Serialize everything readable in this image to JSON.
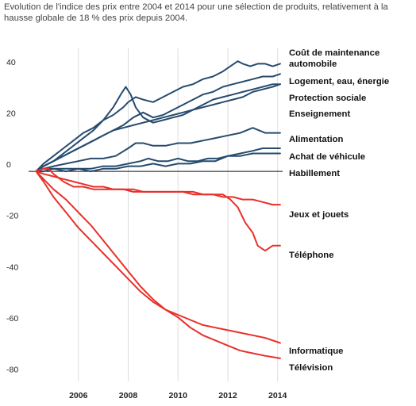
{
  "chart_data": {
    "type": "line",
    "title": "Evolution de l'indice des prix entre 2004 et 2014 pour une sélection de produits, relativement à la hausse globale de 18 % des prix depuis 2004.",
    "xlabel": "",
    "ylabel": "",
    "xlim": [
      2004.0,
      2014.2
    ],
    "ylim": [
      -82,
      48
    ],
    "x_ticks": [
      2006,
      2008,
      2010,
      2012,
      2014
    ],
    "x_tick_labels": [
      "2006",
      "2008",
      "2010",
      "2012",
      "2014"
    ],
    "y_ticks": [
      40,
      20,
      0,
      -20,
      -40,
      -60,
      -80
    ],
    "y_tick_labels": [
      "40",
      "20",
      "0",
      "-20",
      "-40",
      "-60",
      "-80"
    ],
    "grid": "vertical",
    "colors": {
      "up": "#274b6e",
      "down": "#e8302a",
      "zero_line": "#111111",
      "grid": "#dddddd"
    },
    "series": [
      {
        "name": "Coût de maintenance automobile",
        "color": "#274b6e",
        "label_lines": [
          "Coût de maintenance",
          "automobile"
        ],
        "x": [
          2004.3,
          2004.6,
          2005.0,
          2005.4,
          2005.8,
          2006.2,
          2006.6,
          2007.0,
          2007.4,
          2007.8,
          2008.0,
          2008.3,
          2008.6,
          2009.0,
          2009.4,
          2009.8,
          2010.2,
          2010.6,
          2011.0,
          2011.4,
          2011.8,
          2012.1,
          2012.4,
          2012.6,
          2012.9,
          2013.2,
          2013.5,
          2013.8,
          2014.1
        ],
        "y": [
          0,
          3,
          6,
          9,
          12,
          15,
          17,
          20,
          22,
          25,
          27,
          29,
          28,
          27,
          29,
          31,
          33,
          34,
          36,
          37,
          39,
          41,
          43,
          42,
          41,
          42,
          42,
          41,
          42
        ]
      },
      {
        "name": "Logement, eau, énergie",
        "color": "#274b6e",
        "x": [
          2004.3,
          2004.6,
          2005.0,
          2005.4,
          2005.8,
          2006.2,
          2006.6,
          2007.0,
          2007.4,
          2007.8,
          2008.2,
          2008.6,
          2009.0,
          2009.4,
          2009.8,
          2010.2,
          2010.6,
          2011.0,
          2011.4,
          2011.8,
          2012.2,
          2012.6,
          2013.0,
          2013.4,
          2013.8,
          2014.1
        ],
        "y": [
          0,
          2,
          4,
          6,
          8,
          10,
          12,
          14,
          16,
          18,
          21,
          23,
          21,
          22,
          24,
          26,
          28,
          30,
          31,
          33,
          34,
          35,
          36,
          37,
          37,
          38
        ]
      },
      {
        "name": "Protection sociale",
        "color": "#274b6e",
        "x": [
          2004.3,
          2004.6,
          2005.0,
          2005.4,
          2005.8,
          2006.2,
          2006.6,
          2007.0,
          2007.4,
          2007.7,
          2007.9,
          2008.1,
          2008.3,
          2008.6,
          2009.0,
          2009.4,
          2009.8,
          2010.2,
          2010.6,
          2011.0,
          2011.4,
          2011.8,
          2012.2,
          2012.6,
          2013.0,
          2013.4,
          2013.8,
          2014.1
        ],
        "y": [
          0,
          2,
          4,
          7,
          10,
          13,
          16,
          20,
          25,
          30,
          33,
          30,
          25,
          21,
          19,
          20,
          21,
          22,
          24,
          26,
          28,
          29,
          30,
          31,
          32,
          33,
          34,
          34
        ]
      },
      {
        "name": "Enseignement",
        "color": "#274b6e",
        "x": [
          2004.3,
          2004.6,
          2005.0,
          2005.4,
          2005.8,
          2006.2,
          2006.6,
          2007.0,
          2007.4,
          2007.8,
          2008.2,
          2008.6,
          2009.0,
          2009.4,
          2009.8,
          2010.2,
          2010.6,
          2011.0,
          2011.4,
          2011.8,
          2012.2,
          2012.6,
          2013.0,
          2013.4,
          2013.8,
          2014.1
        ],
        "y": [
          0,
          2,
          4,
          6,
          8,
          10,
          12,
          14,
          16,
          17,
          18,
          19,
          20,
          21,
          22,
          23,
          24,
          25,
          26,
          27,
          28,
          29,
          31,
          32,
          33,
          34
        ]
      },
      {
        "name": "Alimentation",
        "color": "#274b6e",
        "x": [
          2004.3,
          2004.6,
          2005.0,
          2005.5,
          2006.0,
          2006.5,
          2007.0,
          2007.5,
          2008.0,
          2008.3,
          2008.6,
          2009.0,
          2009.5,
          2010.0,
          2010.5,
          2011.0,
          2011.5,
          2012.0,
          2012.5,
          2013.0,
          2013.5,
          2014.1
        ],
        "y": [
          0,
          1,
          2,
          3,
          4,
          5,
          5,
          6,
          9,
          11,
          11,
          10,
          10,
          11,
          11,
          12,
          13,
          14,
          15,
          17,
          15,
          15
        ]
      },
      {
        "name": "Achat de véhicule",
        "color": "#274b6e",
        "x": [
          2004.3,
          2004.6,
          2005.0,
          2005.5,
          2006.0,
          2006.5,
          2007.0,
          2007.5,
          2008.0,
          2008.5,
          2008.8,
          2009.2,
          2009.6,
          2010.0,
          2010.4,
          2010.8,
          2011.2,
          2011.6,
          2012.0,
          2012.5,
          2013.0,
          2013.4,
          2013.8,
          2014.1
        ],
        "y": [
          0,
          0,
          1,
          1,
          1,
          1,
          2,
          2,
          3,
          4,
          5,
          4,
          4,
          5,
          4,
          4,
          5,
          5,
          6,
          7,
          8,
          9,
          9,
          9
        ]
      },
      {
        "name": "Habillement",
        "color": "#274b6e",
        "x": [
          2004.3,
          2004.6,
          2005.0,
          2005.5,
          2006.0,
          2006.5,
          2007.0,
          2007.5,
          2008.0,
          2008.5,
          2009.0,
          2009.5,
          2010.0,
          2010.5,
          2011.0,
          2011.5,
          2012.0,
          2012.5,
          2013.0,
          2013.5,
          2014.1
        ],
        "y": [
          0,
          1,
          1,
          0,
          1,
          0,
          1,
          1,
          2,
          2,
          3,
          2,
          3,
          3,
          4,
          4,
          6,
          6,
          7,
          7,
          7
        ]
      },
      {
        "name": "Jeux et jouets",
        "color": "#e8302a",
        "x": [
          2004.3,
          2004.6,
          2005.0,
          2005.4,
          2005.8,
          2006.2,
          2006.6,
          2007.0,
          2007.4,
          2007.8,
          2008.2,
          2008.6,
          2009.0,
          2009.4,
          2009.8,
          2010.2,
          2010.6,
          2011.0,
          2011.4,
          2011.8,
          2012.2,
          2012.6,
          2013.0,
          2013.4,
          2013.8,
          2014.1
        ],
        "y": [
          0,
          -1,
          -2,
          -3,
          -4,
          -5,
          -6,
          -6,
          -7,
          -7,
          -7,
          -8,
          -8,
          -8,
          -8,
          -8,
          -9,
          -9,
          -9,
          -10,
          -10,
          -11,
          -11,
          -12,
          -13,
          -13
        ]
      },
      {
        "name": "Téléphone",
        "color": "#e8302a",
        "x": [
          2004.3,
          2004.6,
          2004.8,
          2005.0,
          2005.4,
          2005.8,
          2006.2,
          2006.6,
          2007.0,
          2007.4,
          2007.8,
          2008.2,
          2008.6,
          2009.0,
          2009.4,
          2009.8,
          2010.2,
          2010.6,
          2011.0,
          2011.4,
          2011.8,
          2012.1,
          2012.4,
          2012.7,
          2013.0,
          2013.2,
          2013.5,
          2013.8,
          2014.1
        ],
        "y": [
          0,
          1,
          1,
          -1,
          -4,
          -6,
          -6,
          -7,
          -7,
          -7,
          -7,
          -8,
          -8,
          -8,
          -8,
          -8,
          -8,
          -8,
          -9,
          -9,
          -9,
          -11,
          -14,
          -20,
          -24,
          -29,
          -31,
          -29,
          -29
        ]
      },
      {
        "name": "Informatique",
        "color": "#e8302a",
        "x": [
          2004.3,
          2004.6,
          2005.0,
          2005.5,
          2006.0,
          2006.5,
          2007.0,
          2007.5,
          2008.0,
          2008.5,
          2009.0,
          2009.5,
          2010.0,
          2010.5,
          2011.0,
          2011.5,
          2012.0,
          2012.5,
          2013.0,
          2013.5,
          2014.1
        ],
        "y": [
          0,
          -3,
          -7,
          -11,
          -16,
          -21,
          -27,
          -33,
          -39,
          -45,
          -50,
          -54,
          -56,
          -58,
          -60,
          -61,
          -62,
          -63,
          -64,
          -65,
          -67
        ]
      },
      {
        "name": "Télévision",
        "color": "#e8302a",
        "x": [
          2004.3,
          2004.6,
          2005.0,
          2005.5,
          2006.0,
          2006.5,
          2007.0,
          2007.5,
          2008.0,
          2008.5,
          2009.0,
          2009.5,
          2010.0,
          2010.5,
          2011.0,
          2011.5,
          2012.0,
          2012.5,
          2013.0,
          2013.5,
          2014.1
        ],
        "y": [
          0,
          -4,
          -10,
          -16,
          -22,
          -27,
          -32,
          -37,
          -42,
          -47,
          -51,
          -54,
          -57,
          -61,
          -64,
          -66,
          -68,
          -70,
          -71,
          -72,
          -73
        ]
      }
    ]
  }
}
